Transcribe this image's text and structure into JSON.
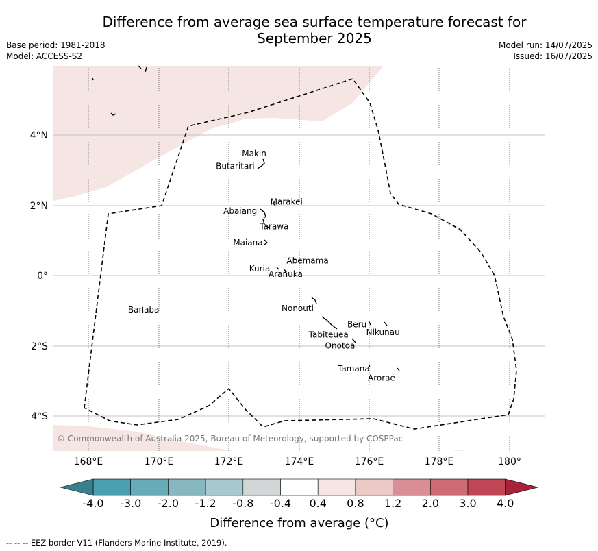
{
  "header": {
    "title_line1": "Difference from average sea surface temperature forecast for",
    "title_line2": "September 2025",
    "base_period": "Base period: 1981-2018",
    "model": "Model: ACCESS-S2",
    "model_run": "Model run: 14/07/2025",
    "issued": "Issued: 16/07/2025"
  },
  "map": {
    "lon_ticks": [
      "168°E",
      "170°E",
      "172°E",
      "174°E",
      "176°E",
      "178°E",
      "180°"
    ],
    "lat_ticks": [
      "4°N",
      "2°N",
      "0°",
      "2°S",
      "4°S"
    ],
    "copyright": "© Commonwealth of Australia 2025, Bureau of Meteorology, supported by COSPPac",
    "islands": [
      {
        "name": "Makin",
        "lon": 173.0,
        "lat": 3.2
      },
      {
        "name": "Butaritari",
        "lon": 172.9,
        "lat": 3.0
      },
      {
        "name": "Marakei",
        "lon": 173.3,
        "lat": 2.0
      },
      {
        "name": "Abaiang",
        "lon": 172.9,
        "lat": 1.8
      },
      {
        "name": "Tarawa",
        "lon": 173.0,
        "lat": 1.4
      },
      {
        "name": "Maiana",
        "lon": 173.0,
        "lat": 1.0
      },
      {
        "name": "Abemama",
        "lon": 173.9,
        "lat": 0.4
      },
      {
        "name": "Kuria",
        "lon": 173.4,
        "lat": 0.2
      },
      {
        "name": "Aranuka",
        "lon": 173.6,
        "lat": 0.2
      },
      {
        "name": "Nonouti",
        "lon": 174.4,
        "lat": -0.7
      },
      {
        "name": "Banaba",
        "lon": 169.5,
        "lat": -0.9
      },
      {
        "name": "Tabiteuea",
        "lon": 174.9,
        "lat": -1.3
      },
      {
        "name": "Beru",
        "lon": 176.0,
        "lat": -1.3
      },
      {
        "name": "Nikunau",
        "lon": 176.5,
        "lat": -1.4
      },
      {
        "name": "Onotoa",
        "lon": 175.6,
        "lat": -1.8
      },
      {
        "name": "Tamana",
        "lon": 176.0,
        "lat": -2.5
      },
      {
        "name": "Arorae",
        "lon": 176.8,
        "lat": -2.7
      }
    ]
  },
  "colorbar": {
    "ticks": [
      "-4.0",
      "-3.0",
      "-2.0",
      "-1.2",
      "-0.8",
      "-0.4",
      "0.4",
      "0.8",
      "1.2",
      "2.0",
      "3.0",
      "4.0"
    ],
    "colors": [
      "#4aa0b0",
      "#67acb8",
      "#87b8c2",
      "#a8c9cd",
      "#d2d6d6",
      "#ffffff",
      "#f5e6e4",
      "#ebc9c6",
      "#d98f95",
      "#cd6a74",
      "#c04555"
    ],
    "under_color": "#3b7f8c",
    "over_color": "#a8213a",
    "label": "Difference from average (°C)"
  },
  "footer": {
    "eez_note": "--  --  -- EEZ border V11 (Flanders Marine Institute, 2019)."
  }
}
